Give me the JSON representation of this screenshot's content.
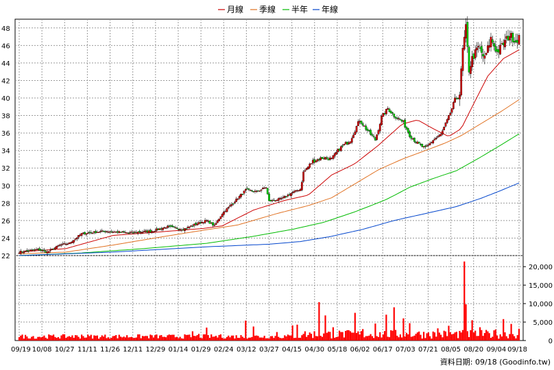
{
  "legend": [
    {
      "label": "月線",
      "color": "#cc0000"
    },
    {
      "label": "季線",
      "color": "#e07020"
    },
    {
      "label": "半年",
      "color": "#00bb00"
    },
    {
      "label": "年線",
      "color": "#0044cc"
    }
  ],
  "source_note": "資料日期: 09/18  (Goodinfo.tw)",
  "chart_data": {
    "type": "candlestick",
    "price_axis": {
      "ticks": [
        22,
        24,
        26,
        28,
        30,
        32,
        34,
        36,
        38,
        40,
        42,
        44,
        46,
        48
      ],
      "ylim": [
        22,
        49
      ]
    },
    "volume_axis": {
      "ticks": [
        "0",
        "5,000",
        "10,000",
        "15,000",
        "20,000"
      ],
      "tick_values": [
        0,
        5000,
        10000,
        15000,
        20000
      ],
      "ylim": [
        0,
        23000
      ]
    },
    "x_ticks": [
      "09/19",
      "10/08",
      "10/27",
      "11/11",
      "11/26",
      "12/11",
      "12/29",
      "01/14",
      "01/29",
      "02/24",
      "03/12",
      "03/27",
      "04/15",
      "04/30",
      "05/18",
      "06/02",
      "06/17",
      "07/03",
      "07/21",
      "08/05",
      "08/20",
      "09/04",
      "09/18"
    ],
    "grid": true,
    "up_color": "#cc0000",
    "down_color": "#00cc00",
    "price_anchors": [
      [
        0,
        22.4
      ],
      [
        12,
        22.7
      ],
      [
        18,
        22.4
      ],
      [
        26,
        23.2
      ],
      [
        32,
        23.4
      ],
      [
        40,
        24.5
      ],
      [
        55,
        24.8
      ],
      [
        70,
        24.6
      ],
      [
        85,
        24.8
      ],
      [
        95,
        25.3
      ],
      [
        105,
        25.0
      ],
      [
        113,
        25.6
      ],
      [
        120,
        26.0
      ],
      [
        125,
        25.4
      ],
      [
        130,
        26.8
      ],
      [
        138,
        28.2
      ],
      [
        145,
        29.5
      ],
      [
        152,
        29.3
      ],
      [
        158,
        29.8
      ],
      [
        160,
        28.2
      ],
      [
        168,
        28.5
      ],
      [
        175,
        29.2
      ],
      [
        180,
        29.6
      ],
      [
        182,
        31.5
      ],
      [
        188,
        32.8
      ],
      [
        195,
        33.2
      ],
      [
        200,
        33.0
      ],
      [
        205,
        34.2
      ],
      [
        212,
        35.2
      ],
      [
        218,
        37.5
      ],
      [
        222,
        36.5
      ],
      [
        228,
        35.2
      ],
      [
        232,
        37.8
      ],
      [
        236,
        38.8
      ],
      [
        240,
        38.0
      ],
      [
        246,
        37.2
      ],
      [
        250,
        35.8
      ],
      [
        255,
        34.8
      ],
      [
        260,
        34.2
      ],
      [
        265,
        35.2
      ],
      [
        270,
        35.8
      ],
      [
        275,
        37.8
      ],
      [
        279,
        39.8
      ],
      [
        282,
        40.5
      ],
      [
        284,
        45.5
      ],
      [
        286,
        48.0
      ],
      [
        288,
        43.2
      ],
      [
        290,
        44.5
      ],
      [
        294,
        45.8
      ],
      [
        298,
        44.5
      ],
      [
        302,
        46.8
      ],
      [
        306,
        45.2
      ],
      [
        310,
        46.2
      ],
      [
        314,
        47.2
      ],
      [
        318,
        46.5
      ],
      [
        320,
        47.0
      ]
    ],
    "n_candles": 321,
    "moving_averages": [
      {
        "name": "月線",
        "color": "#cc0000",
        "points": [
          [
            0,
            22.4
          ],
          [
            30,
            22.8
          ],
          [
            60,
            24.3
          ],
          [
            90,
            24.7
          ],
          [
            118,
            25.1
          ],
          [
            130,
            25.4
          ],
          [
            150,
            27.2
          ],
          [
            170,
            28.3
          ],
          [
            185,
            28.9
          ],
          [
            200,
            31.2
          ],
          [
            215,
            32.5
          ],
          [
            230,
            34.6
          ],
          [
            245,
            37.0
          ],
          [
            255,
            37.5
          ],
          [
            265,
            36.5
          ],
          [
            275,
            35.6
          ],
          [
            283,
            36.5
          ],
          [
            290,
            39.0
          ],
          [
            300,
            42.5
          ],
          [
            310,
            44.5
          ],
          [
            320,
            45.5
          ]
        ]
      },
      {
        "name": "季線",
        "color": "#e07020",
        "points": [
          [
            0,
            22.2
          ],
          [
            30,
            22.4
          ],
          [
            60,
            23.2
          ],
          [
            90,
            24.1
          ],
          [
            118,
            24.9
          ],
          [
            140,
            25.5
          ],
          [
            165,
            26.8
          ],
          [
            185,
            27.7
          ],
          [
            200,
            28.6
          ],
          [
            215,
            30.2
          ],
          [
            230,
            31.8
          ],
          [
            245,
            33.0
          ],
          [
            260,
            34.0
          ],
          [
            272,
            34.8
          ],
          [
            283,
            35.7
          ],
          [
            295,
            37.0
          ],
          [
            308,
            38.4
          ],
          [
            320,
            39.8
          ]
        ]
      },
      {
        "name": "半年",
        "color": "#00bb00",
        "points": [
          [
            0,
            22.0
          ],
          [
            40,
            22.3
          ],
          [
            80,
            22.8
          ],
          [
            120,
            23.4
          ],
          [
            150,
            24.2
          ],
          [
            175,
            25.0
          ],
          [
            195,
            25.8
          ],
          [
            215,
            27.0
          ],
          [
            235,
            28.4
          ],
          [
            250,
            29.8
          ],
          [
            265,
            30.8
          ],
          [
            280,
            31.7
          ],
          [
            295,
            33.2
          ],
          [
            310,
            34.8
          ],
          [
            320,
            35.9
          ]
        ]
      },
      {
        "name": "年線",
        "color": "#0044cc",
        "points": [
          [
            0,
            22.0
          ],
          [
            60,
            22.4
          ],
          [
            120,
            23.0
          ],
          [
            160,
            23.3
          ],
          [
            180,
            23.6
          ],
          [
            200,
            24.2
          ],
          [
            220,
            25.0
          ],
          [
            240,
            26.0
          ],
          [
            260,
            26.8
          ],
          [
            280,
            27.6
          ],
          [
            295,
            28.5
          ],
          [
            308,
            29.4
          ],
          [
            320,
            30.3
          ]
        ]
      }
    ],
    "volume_spikes": [
      [
        10,
        500
      ],
      [
        34,
        1400
      ],
      [
        40,
        1600
      ],
      [
        60,
        1200
      ],
      [
        92,
        1000
      ],
      [
        111,
        2500
      ],
      [
        115,
        1800
      ],
      [
        120,
        3500
      ],
      [
        128,
        1500
      ],
      [
        145,
        5400
      ],
      [
        150,
        3800
      ],
      [
        165,
        2300
      ],
      [
        175,
        4100
      ],
      [
        178,
        4300
      ],
      [
        182,
        1800
      ],
      [
        192,
        10400
      ],
      [
        196,
        6800
      ],
      [
        201,
        3600
      ],
      [
        207,
        2300
      ],
      [
        215,
        7500
      ],
      [
        220,
        3100
      ],
      [
        228,
        4600
      ],
      [
        235,
        7000
      ],
      [
        240,
        9000
      ],
      [
        246,
        6000
      ],
      [
        250,
        4700
      ],
      [
        255,
        2200
      ],
      [
        262,
        2200
      ],
      [
        268,
        3300
      ],
      [
        275,
        4000
      ],
      [
        282,
        2600
      ],
      [
        285,
        21400
      ],
      [
        286,
        9800
      ],
      [
        290,
        5500
      ],
      [
        295,
        3600
      ],
      [
        305,
        3000
      ],
      [
        310,
        5800
      ],
      [
        315,
        4500
      ],
      [
        320,
        3200
      ]
    ],
    "volume_base": 1000
  }
}
